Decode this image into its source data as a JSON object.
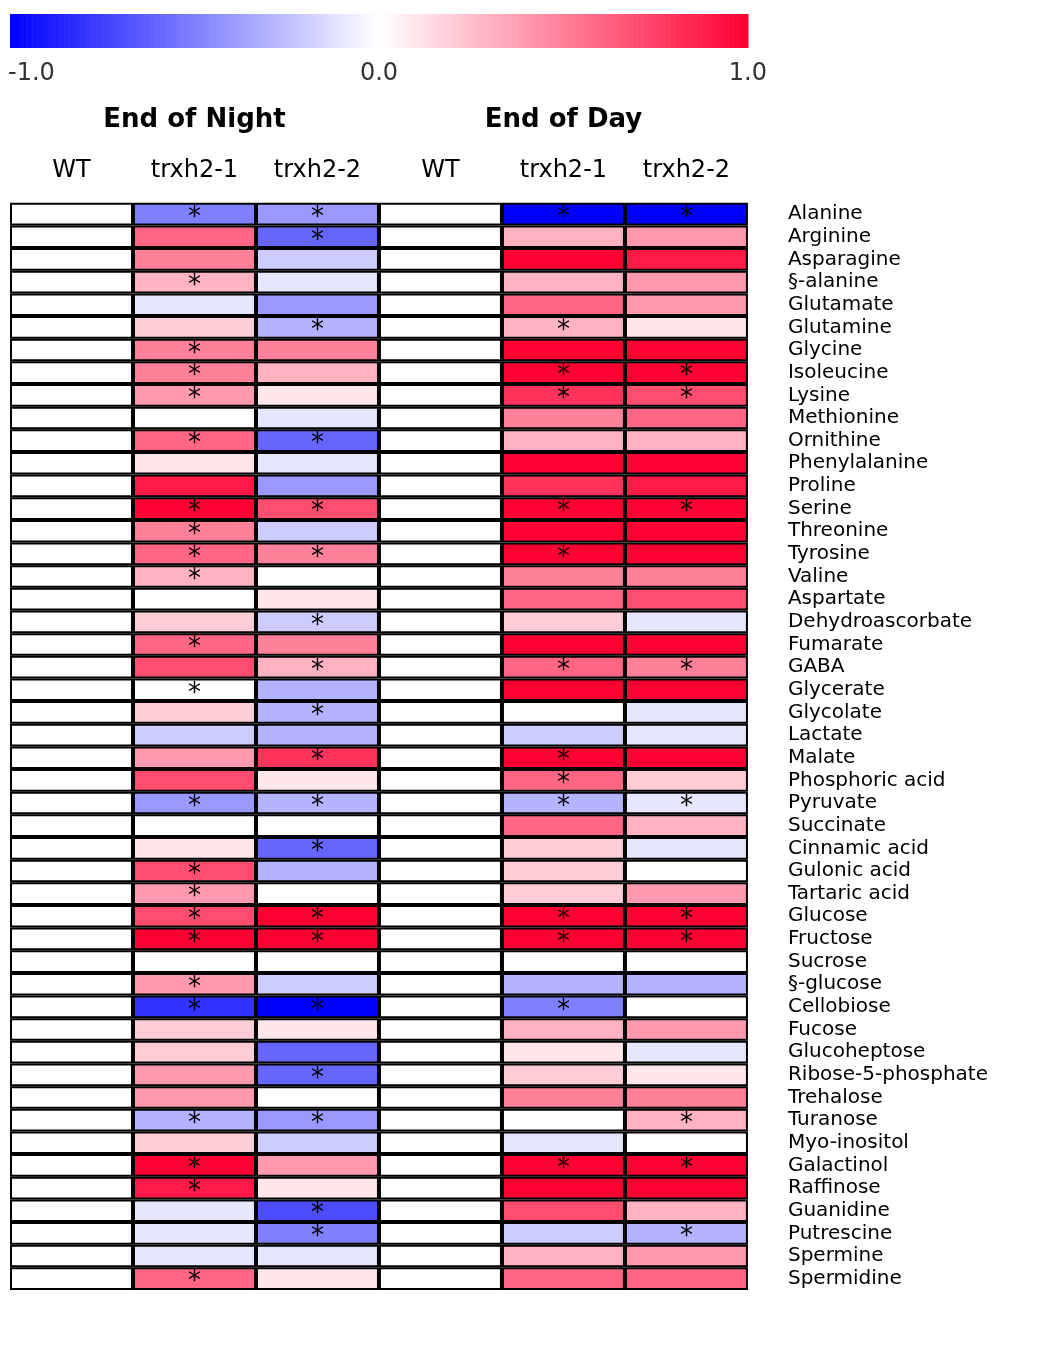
{
  "chart_data": {
    "type": "heatmap",
    "annotations": [
      "End of Night",
      "End of Day"
    ],
    "categories": [
      "WT",
      "trxh2-1",
      "trxh2-2",
      "WT",
      "trxh2-1",
      "trxh2-2"
    ],
    "y_categories": [
      "Alanine",
      "Arginine",
      "Asparagine",
      "§-alanine",
      "Glutamate",
      "Glutamine",
      "Glycine",
      "Isoleucine",
      "Lysine",
      "Methionine",
      "Ornithine",
      "Phenylalanine",
      "Proline",
      "Serine",
      "Threonine",
      "Tyrosine",
      "Valine",
      "Aspartate",
      "Dehydroascorbate",
      "Fumarate",
      "GABA",
      "Glycerate",
      "Glycolate",
      "Lactate",
      "Malate",
      "Phosphoric acid",
      "Pyruvate",
      "Succinate",
      "Cinnamic acid",
      "Gulonic acid",
      "Tartaric acid",
      "Glucose",
      "Fructose",
      "Sucrose",
      "§-glucose",
      "Cellobiose",
      "Fucose",
      "Glucoheptose",
      "Ribose-5-phosphate",
      "Trehalose",
      "Turanose",
      "Myo-inositol",
      "Galactinol",
      "Raffinose",
      "Guanidine",
      "Putrescine",
      "Spermine",
      "Spermidine"
    ],
    "cells": [
      [
        0,
        -0.5,
        -0.4,
        0,
        -1.0,
        -1.0
      ],
      [
        0,
        0.6,
        -0.6,
        0,
        0.3,
        0.4
      ],
      [
        0,
        0.5,
        -0.2,
        0,
        1.0,
        0.9
      ],
      [
        0,
        0.3,
        -0.1,
        0,
        0.3,
        0.4
      ],
      [
        0,
        -0.1,
        -0.4,
        0,
        0.6,
        0.4
      ],
      [
        0,
        0.2,
        -0.3,
        0,
        0.3,
        0.1
      ],
      [
        0,
        0.5,
        0.5,
        0,
        1.0,
        1.0
      ],
      [
        0,
        0.5,
        0.3,
        0,
        1.0,
        1.0
      ],
      [
        0,
        0.4,
        0.1,
        0,
        0.8,
        0.7
      ],
      [
        0,
        0.0,
        -0.1,
        0,
        0.5,
        0.6
      ],
      [
        0,
        0.6,
        -0.6,
        0,
        0.3,
        0.3
      ],
      [
        0,
        0.1,
        -0.1,
        0,
        1.0,
        1.0
      ],
      [
        0,
        0.9,
        -0.4,
        0,
        0.8,
        0.9
      ],
      [
        0,
        1.0,
        0.7,
        0,
        1.0,
        1.0
      ],
      [
        0,
        0.5,
        -0.2,
        0,
        1.0,
        1.0
      ],
      [
        0,
        0.6,
        0.5,
        0,
        1.0,
        1.0
      ],
      [
        0,
        0.3,
        0.0,
        0,
        0.5,
        0.5
      ],
      [
        0,
        0.0,
        0.1,
        0,
        0.6,
        0.7
      ],
      [
        0,
        0.2,
        -0.2,
        0,
        0.2,
        -0.1
      ],
      [
        0,
        0.6,
        0.5,
        0,
        1.0,
        1.0
      ],
      [
        0,
        0.7,
        0.3,
        0,
        0.6,
        0.5
      ],
      [
        0,
        0.0,
        -0.3,
        0,
        1.0,
        1.0
      ],
      [
        0,
        0.2,
        -0.3,
        0,
        0.0,
        -0.1
      ],
      [
        0,
        -0.2,
        -0.3,
        0,
        -0.2,
        -0.1
      ],
      [
        0,
        0.4,
        0.8,
        0,
        1.0,
        1.0
      ],
      [
        0,
        0.7,
        0.1,
        0,
        0.6,
        0.2
      ],
      [
        0,
        -0.4,
        -0.3,
        0,
        -0.3,
        -0.1
      ],
      [
        0,
        0.0,
        0.0,
        0,
        0.6,
        0.3
      ],
      [
        0,
        0.1,
        -0.6,
        0,
        0.2,
        -0.1
      ],
      [
        0,
        0.7,
        -0.3,
        0,
        0.2,
        0.0
      ],
      [
        0,
        0.4,
        0.0,
        0,
        0.2,
        0.4
      ],
      [
        0,
        0.7,
        1.0,
        0,
        1.0,
        1.0
      ],
      [
        0,
        1.0,
        1.0,
        0,
        1.0,
        1.0
      ],
      [
        0,
        0.0,
        0.0,
        0,
        0.0,
        0.0
      ],
      [
        0,
        0.4,
        -0.2,
        0,
        -0.3,
        -0.3
      ],
      [
        0,
        -0.8,
        -1.0,
        0,
        -0.5,
        0.0
      ],
      [
        0,
        0.2,
        0.1,
        0,
        0.3,
        0.4
      ],
      [
        0,
        0.2,
        -0.6,
        0,
        0.1,
        -0.1
      ],
      [
        0,
        0.4,
        -0.6,
        0,
        0.2,
        0.1
      ],
      [
        0,
        0.4,
        0.0,
        0,
        0.5,
        0.5
      ],
      [
        0,
        -0.3,
        -0.4,
        0,
        0.0,
        0.3
      ],
      [
        0,
        0.2,
        -0.2,
        0,
        -0.1,
        0.0
      ],
      [
        0,
        1.0,
        0.4,
        0,
        1.0,
        1.0
      ],
      [
        0,
        0.9,
        0.1,
        0,
        1.0,
        1.0
      ],
      [
        0,
        -0.1,
        -0.7,
        0,
        0.7,
        0.3
      ],
      [
        0,
        -0.1,
        -0.5,
        0,
        -0.2,
        -0.3
      ],
      [
        0,
        -0.1,
        -0.1,
        0,
        0.3,
        0.4
      ],
      [
        0,
        0.6,
        0.1,
        0,
        0.6,
        0.6
      ]
    ],
    "cell_labels": [
      [
        null,
        "*",
        "*",
        null,
        "*",
        "*"
      ],
      [
        null,
        null,
        "*",
        null,
        null,
        null
      ],
      [
        null,
        null,
        null,
        null,
        null,
        null
      ],
      [
        null,
        "*",
        null,
        null,
        null,
        null
      ],
      [
        null,
        null,
        null,
        null,
        null,
        null
      ],
      [
        null,
        null,
        "*",
        null,
        "*",
        null
      ],
      [
        null,
        "*",
        null,
        null,
        null,
        null
      ],
      [
        null,
        "*",
        null,
        null,
        "*",
        "*"
      ],
      [
        null,
        "*",
        null,
        null,
        "*",
        "*"
      ],
      [
        null,
        null,
        null,
        null,
        null,
        null
      ],
      [
        null,
        "*",
        "*",
        null,
        null,
        null
      ],
      [
        null,
        null,
        null,
        null,
        null,
        null
      ],
      [
        null,
        null,
        null,
        null,
        null,
        null
      ],
      [
        null,
        "*",
        "*",
        null,
        "*",
        "*"
      ],
      [
        null,
        "*",
        null,
        null,
        null,
        null
      ],
      [
        null,
        "*",
        "*",
        null,
        "*",
        null
      ],
      [
        null,
        "*",
        null,
        null,
        null,
        null
      ],
      [
        null,
        null,
        null,
        null,
        null,
        null
      ],
      [
        null,
        null,
        "*",
        null,
        null,
        null
      ],
      [
        null,
        "*",
        null,
        null,
        null,
        null
      ],
      [
        null,
        null,
        "*",
        null,
        "*",
        "*"
      ],
      [
        null,
        "*",
        null,
        null,
        null,
        null
      ],
      [
        null,
        null,
        "*",
        null,
        null,
        null
      ],
      [
        null,
        null,
        null,
        null,
        null,
        null
      ],
      [
        null,
        null,
        "*",
        null,
        "*",
        null
      ],
      [
        null,
        null,
        null,
        null,
        "*",
        null
      ],
      [
        null,
        "*",
        "*",
        null,
        "*",
        "*"
      ],
      [
        null,
        null,
        null,
        null,
        null,
        null
      ],
      [
        null,
        null,
        "*",
        null,
        null,
        null
      ],
      [
        null,
        "*",
        null,
        null,
        null,
        null
      ],
      [
        null,
        "*",
        null,
        null,
        null,
        null
      ],
      [
        null,
        "*",
        "*",
        null,
        "*",
        "*"
      ],
      [
        null,
        "*",
        "*",
        null,
        "*",
        "*"
      ],
      [
        null,
        null,
        null,
        null,
        null,
        null
      ],
      [
        null,
        "*",
        null,
        null,
        null,
        null
      ],
      [
        null,
        "*",
        "*",
        null,
        "*",
        null
      ],
      [
        null,
        null,
        null,
        null,
        null,
        null
      ],
      [
        null,
        null,
        null,
        null,
        null,
        null
      ],
      [
        null,
        null,
        "*",
        null,
        null,
        null
      ],
      [
        null,
        null,
        null,
        null,
        null,
        null
      ],
      [
        null,
        "*",
        "*",
        null,
        null,
        "*"
      ],
      [
        null,
        null,
        null,
        null,
        null,
        null
      ],
      [
        null,
        "*",
        null,
        null,
        "*",
        "*"
      ],
      [
        null,
        "*",
        null,
        null,
        null,
        null
      ],
      [
        null,
        null,
        "*",
        null,
        null,
        null
      ],
      [
        null,
        null,
        "*",
        null,
        null,
        "*"
      ],
      [
        null,
        null,
        null,
        null,
        null,
        null
      ],
      [
        null,
        "*",
        null,
        null,
        null,
        null
      ]
    ],
    "clim": [
      -1,
      1
    ],
    "cticks": [
      {
        "value": -1,
        "label": "-1.0"
      },
      {
        "value": 0,
        "label": "0.0"
      },
      {
        "value": 1,
        "label": "1.0"
      }
    ]
  }
}
